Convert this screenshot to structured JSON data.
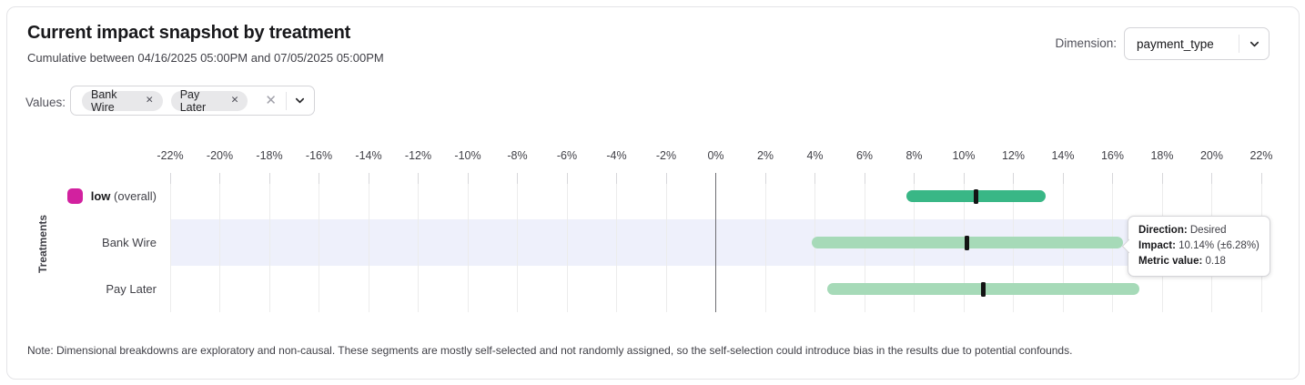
{
  "header": {
    "title": "Current impact snapshot by treatment",
    "subtitle": "Cumulative between 04/16/2025 05:00PM and 07/05/2025 05:00PM",
    "dimension_label": "Dimension:",
    "dimension_value": "payment_type"
  },
  "values_filter": {
    "label": "Values:",
    "chips": [
      {
        "label": "Bank Wire",
        "remove_icon": "✕"
      },
      {
        "label": "Pay Later",
        "remove_icon": "✕"
      }
    ],
    "clear_icon": "✕"
  },
  "chart_data": {
    "type": "bar",
    "orientation": "horizontal-interval",
    "title": "",
    "xlabel": "",
    "ylabel": "Treatments",
    "xlim": [
      -22,
      22
    ],
    "x_tick_labels": [
      "-22%",
      "-20%",
      "-18%",
      "-16%",
      "-14%",
      "-12%",
      "-10%",
      "-8%",
      "-6%",
      "-4%",
      "-2%",
      "0%",
      "2%",
      "4%",
      "6%",
      "8%",
      "10%",
      "12%",
      "14%",
      "16%",
      "18%",
      "20%",
      "22%"
    ],
    "grid": true,
    "grid_color": "#ececec",
    "zero_line_color": "#6e6e73",
    "highlight_band_color": "#eef0fb",
    "marker_color": "#141414",
    "rows": [
      {
        "label": "low",
        "label_suffix": " (overall)",
        "bold": true,
        "swatch_color": "#d2219f",
        "impact_pct": 10.5,
        "ci_low_pct": 7.7,
        "ci_high_pct": 13.3,
        "bar_color": "#39b786",
        "highlighted": false
      },
      {
        "label": "Bank Wire",
        "bold": false,
        "impact_pct": 10.14,
        "ci_low_pct": 3.86,
        "ci_high_pct": 16.42,
        "bar_color": "#a6dab8",
        "highlighted": true,
        "metric_value": 0.18,
        "direction": "Desired"
      },
      {
        "label": "Pay Later",
        "bold": false,
        "impact_pct": 10.8,
        "ci_low_pct": 4.5,
        "ci_high_pct": 17.1,
        "bar_color": "#a6dab8",
        "highlighted": false
      }
    ]
  },
  "tooltip": {
    "direction_label": "Direction:",
    "direction_value": "Desired",
    "impact_label": "Impact:",
    "impact_value": "10.14% (±6.28%)",
    "metric_label": "Metric value:",
    "metric_value": "0.18"
  },
  "note": "Note: Dimensional breakdowns are exploratory and non-causal. These segments are mostly self-selected and not randomly assigned, so the self-selection could introduce bias in the results due to potential confounds."
}
